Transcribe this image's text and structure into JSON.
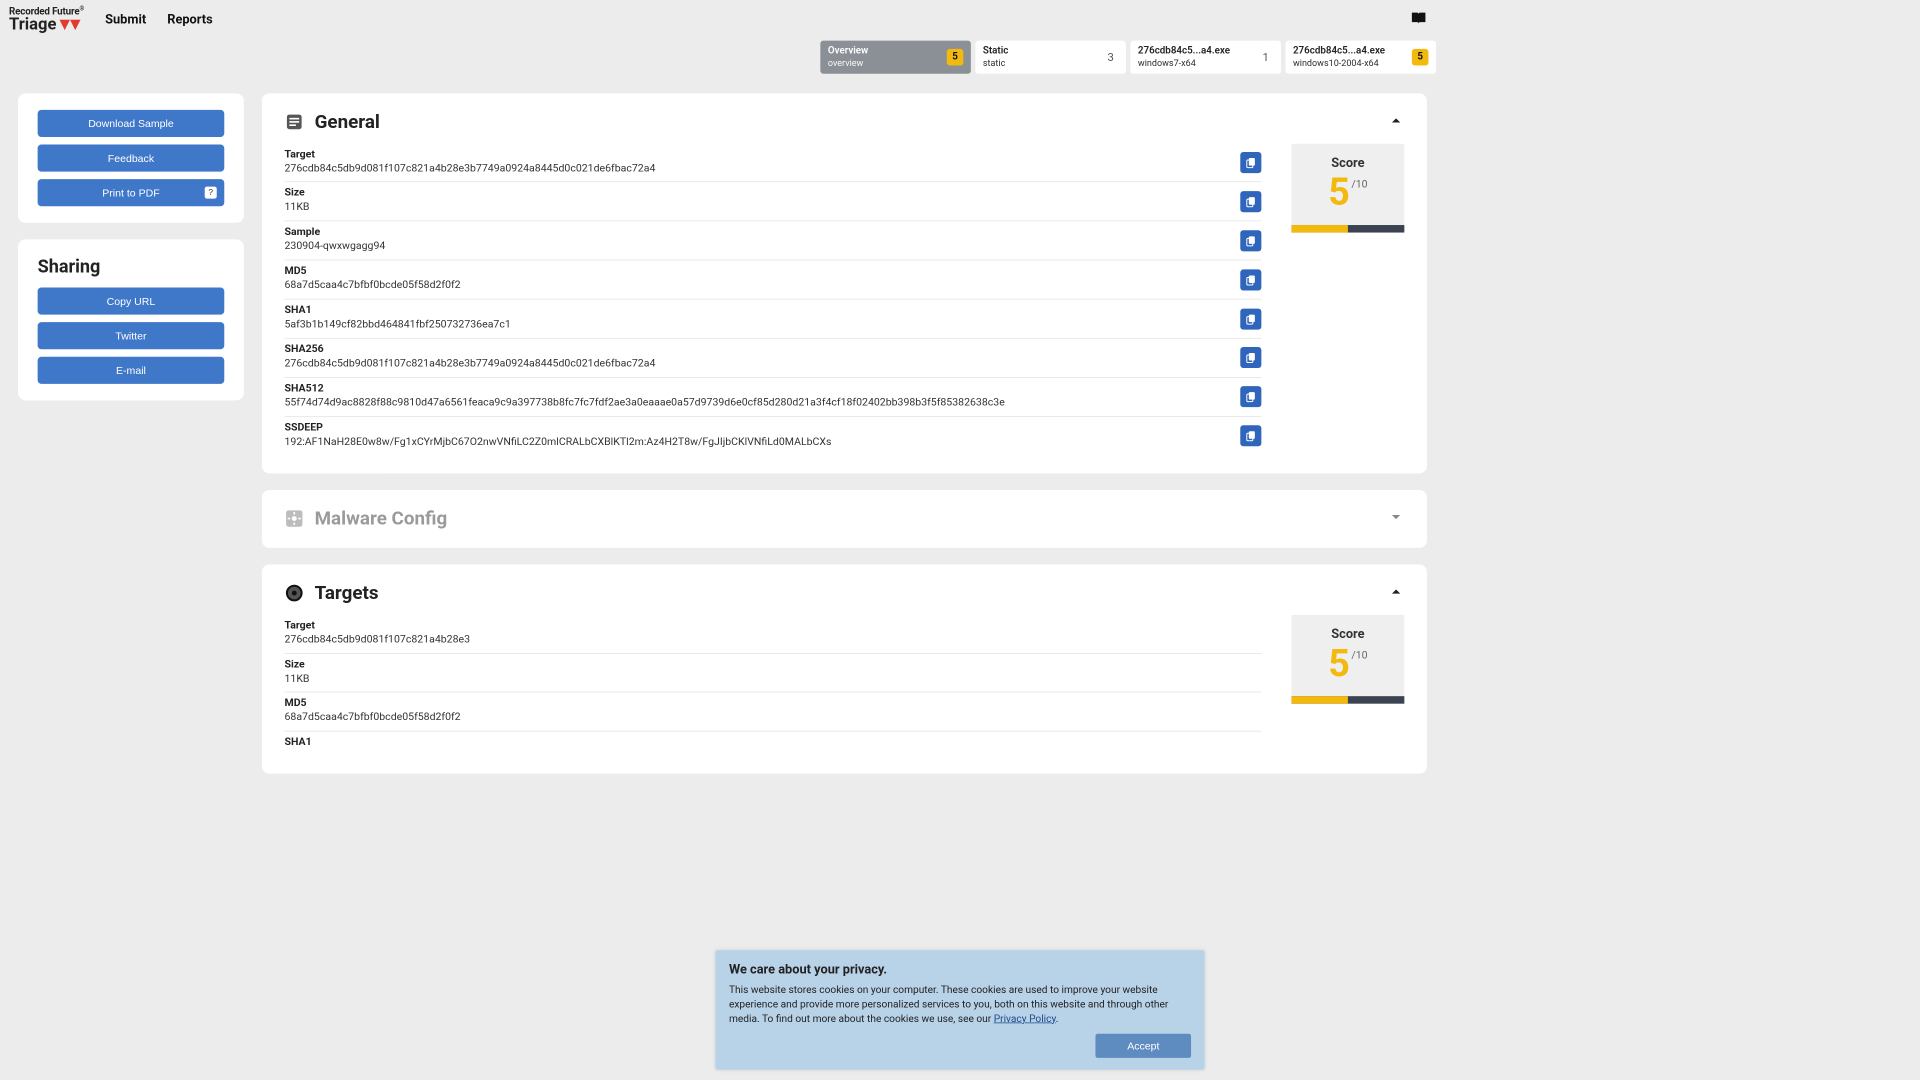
{
  "brand": {
    "top": "Recorded Future",
    "bottom": "Triage"
  },
  "nav": {
    "submit": "Submit",
    "reports": "Reports"
  },
  "tabs": [
    {
      "title": "Overview",
      "sub": "overview",
      "badge": "5",
      "active": true
    },
    {
      "title": "Static",
      "sub": "static",
      "num": "3"
    },
    {
      "title": "276cdb84c5...a4.exe",
      "sub": "windows7-x64",
      "num": "1"
    },
    {
      "title": "276cdb84c5...a4.exe",
      "sub": "windows10-2004-x64",
      "badge": "5"
    }
  ],
  "sidebar": {
    "download": "Download Sample",
    "feedback": "Feedback",
    "print": "Print to PDF",
    "print_key": "?",
    "sharing_h": "Sharing",
    "copyurl": "Copy URL",
    "twitter": "Twitter",
    "email": "E-mail"
  },
  "general": {
    "title": "General",
    "fields": [
      {
        "label": "Target",
        "value": "276cdb84c5db9d081f107c821a4b28e3b7749a0924a8445d0c021de6fbac72a4"
      },
      {
        "label": "Size",
        "value": "11KB"
      },
      {
        "label": "Sample",
        "value": "230904-qwxwgagg94"
      },
      {
        "label": "MD5",
        "value": "68a7d5caa4c7bfbf0bcde05f58d2f0f2"
      },
      {
        "label": "SHA1",
        "value": "5af3b1b149cf82bbd464841fbf250732736ea7c1"
      },
      {
        "label": "SHA256",
        "value": "276cdb84c5db9d081f107c821a4b28e3b7749a0924a8445d0c021de6fbac72a4"
      },
      {
        "label": "SHA512",
        "value": "55f74d74d9ac8828f88c9810d47a6561feaca9c9a397738b8fc7fc7fdf2ae3a0eaaae0a57d9739d6e0cf85d280d21a3f4cf18f02402bb398b3f5f85382638c3e"
      },
      {
        "label": "SSDEEP",
        "value": "192:AF1NaH28E0w8w/Fg1xCYrMjbC67O2nwVNfiLC2Z0mlCRALbCXBlKTl2m:Az4H2T8w/FgJIjbCKlVNfiLd0MALbCXs"
      }
    ],
    "score": {
      "label": "Score",
      "value": "5",
      "max": "/10",
      "fill_pct": 50
    }
  },
  "malware": {
    "title": "Malware Config"
  },
  "targets": {
    "title": "Targets",
    "fields": [
      {
        "label": "Target",
        "value": "276cdb84c5db9d081f107c821a4b28e3"
      },
      {
        "label": "Size",
        "value": "11KB"
      },
      {
        "label": "MD5",
        "value": "68a7d5caa4c7bfbf0bcde05f58d2f0f2"
      },
      {
        "label": "SHA1",
        "value": ""
      }
    ],
    "score": {
      "label": "Score",
      "value": "5",
      "max": "/10",
      "fill_pct": 50
    }
  },
  "cookie": {
    "title": "We care about your privacy.",
    "body1": "This website stores cookies on your computer. These cookies are used to improve your website experience and provide more personalized services to you, both on this website and through other media. To find out more about the cookies we use, see our ",
    "link": "Privacy Policy",
    "accept": "Accept"
  },
  "colors": {
    "accent": "#3f77c9",
    "warn": "#f2b90f",
    "tab_active": "#8a9096",
    "cookie_bg": "#b8d2e8"
  }
}
